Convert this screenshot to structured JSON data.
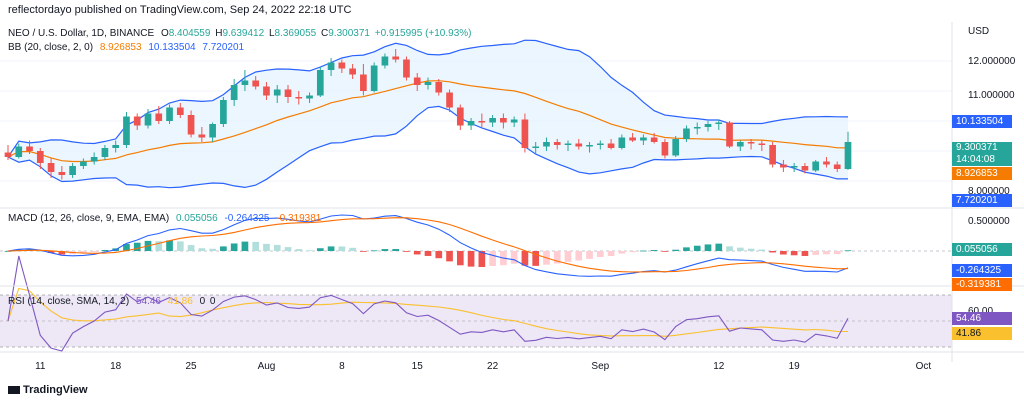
{
  "header": {
    "publisher_line": "reflectordayo published on TradingView.com, Sep 24, 2022 22:18 UTC"
  },
  "price_axis_title": "USD",
  "legend": {
    "symbol": "NEO / U.S. Dollar, 1D, BINANCE",
    "ohlc": {
      "o_label": "O",
      "o": "8.404559",
      "h_label": "H",
      "h": "9.639412",
      "l_label": "L",
      "l": "8.369055",
      "c_label": "C",
      "c": "9.300371",
      "change": "+0.915995 (+10.93%)"
    },
    "bb": {
      "label": "BB (20, close, 2, 0)",
      "basis": "8.926853",
      "upper": "10.133504",
      "lower": "7.720201"
    },
    "macd": {
      "label": "MACD (12, 26, close, 9, EMA, EMA)",
      "hist": "0.055056",
      "macd": "-0.264325",
      "signal": "-0.319381"
    },
    "rsi": {
      "label": "RSI (14, close, SMA, 14, 2)",
      "rsi": "54.46",
      "ma": "41.86",
      "extra1": "0",
      "extra2": "0"
    }
  },
  "badges": {
    "upper": "10.133504",
    "close": "9.300371",
    "countdown": "14:04:08",
    "basis": "8.926853",
    "lower": "7.720201",
    "macd_hist": "0.055056",
    "macd_line": "-0.264325",
    "macd_signal": "-0.319381",
    "rsi": "54.46",
    "rsi_ma": "41.86"
  },
  "colors": {
    "up": "#26a69a",
    "down": "#ef5350",
    "bb_band": "#2962ff",
    "bb_basis": "#f57c00",
    "bb_fill": "#e3f2fd",
    "macd_line": "#2962ff",
    "macd_signal": "#ff6d00",
    "rsi_line": "#7e57c2",
    "rsi_ma": "#fbc02d",
    "rsi_bg": "#ede7f6"
  },
  "footer": {
    "logo_text": "TradingView"
  },
  "chart_data": [
    {
      "type": "candlestick",
      "title": "NEO / U.S. Dollar, 1D, BINANCE",
      "ylabel": "USD",
      "y_ticks": [
        "12.000000",
        "11.000000",
        "8.000000"
      ],
      "x_ticks": [
        "11",
        "18",
        "25",
        "Aug",
        "8",
        "15",
        "22",
        "Sep",
        "12",
        "19",
        "Oct"
      ],
      "ylim": [
        7.3,
        12.9
      ],
      "x": [
        "Jul 8",
        "Jul 9",
        "Jul 10",
        "Jul 11",
        "Jul 12",
        "Jul 13",
        "Jul 14",
        "Jul 15",
        "Jul 16",
        "Jul 17",
        "Jul 18",
        "Jul 19",
        "Jul 20",
        "Jul 21",
        "Jul 22",
        "Jul 23",
        "Jul 24",
        "Jul 25",
        "Jul 26",
        "Jul 27",
        "Jul 28",
        "Jul 29",
        "Jul 30",
        "Jul 31",
        "Aug 1",
        "Aug 2",
        "Aug 3",
        "Aug 4",
        "Aug 5",
        "Aug 6",
        "Aug 7",
        "Aug 8",
        "Aug 9",
        "Aug 10",
        "Aug 11",
        "Aug 12",
        "Aug 13",
        "Aug 14",
        "Aug 15",
        "Aug 16",
        "Aug 17",
        "Aug 18",
        "Aug 19",
        "Aug 20",
        "Aug 21",
        "Aug 22",
        "Aug 23",
        "Aug 24",
        "Aug 25",
        "Aug 26",
        "Aug 27",
        "Aug 28",
        "Aug 29",
        "Aug 30",
        "Aug 31",
        "Sep 1",
        "Sep 2",
        "Sep 3",
        "Sep 4",
        "Sep 5",
        "Sep 6",
        "Sep 7",
        "Sep 8",
        "Sep 9",
        "Sep 10",
        "Sep 11",
        "Sep 12",
        "Sep 13",
        "Sep 14",
        "Sep 15",
        "Sep 16",
        "Sep 17",
        "Sep 18",
        "Sep 19",
        "Sep 20",
        "Sep 21",
        "Sep 22",
        "Sep 23",
        "Sep 24"
      ],
      "ohlc": [
        [
          8.95,
          9.2,
          8.7,
          8.8
        ],
        [
          8.8,
          9.25,
          8.75,
          9.15
        ],
        [
          9.15,
          9.35,
          8.9,
          9.0
        ],
        [
          9.0,
          9.1,
          8.4,
          8.6
        ],
        [
          8.6,
          8.75,
          8.1,
          8.3
        ],
        [
          8.3,
          8.5,
          8.05,
          8.2
        ],
        [
          8.2,
          8.6,
          8.1,
          8.5
        ],
        [
          8.5,
          8.75,
          8.4,
          8.65
        ],
        [
          8.65,
          8.95,
          8.55,
          8.8
        ],
        [
          8.8,
          9.2,
          8.7,
          9.1
        ],
        [
          9.1,
          9.35,
          8.95,
          9.2
        ],
        [
          9.2,
          10.3,
          9.1,
          10.15
        ],
        [
          10.15,
          10.25,
          9.7,
          9.85
        ],
        [
          9.85,
          10.4,
          9.75,
          10.25
        ],
        [
          10.25,
          10.5,
          9.9,
          10.0
        ],
        [
          10.0,
          10.55,
          9.9,
          10.45
        ],
        [
          10.45,
          10.6,
          10.1,
          10.2
        ],
        [
          10.2,
          10.35,
          9.45,
          9.55
        ],
        [
          9.55,
          9.8,
          9.3,
          9.45
        ],
        [
          9.45,
          9.95,
          9.3,
          9.9
        ],
        [
          9.9,
          10.8,
          9.8,
          10.7
        ],
        [
          10.7,
          11.4,
          10.5,
          11.2
        ],
        [
          11.2,
          11.7,
          11.0,
          11.35
        ],
        [
          11.35,
          11.5,
          11.05,
          11.15
        ],
        [
          11.15,
          11.3,
          10.7,
          10.85
        ],
        [
          10.85,
          11.2,
          10.6,
          11.05
        ],
        [
          11.05,
          11.2,
          10.6,
          10.8
        ],
        [
          10.8,
          11.0,
          10.55,
          10.75
        ],
        [
          10.75,
          10.95,
          10.6,
          10.85
        ],
        [
          10.85,
          11.8,
          10.8,
          11.7
        ],
        [
          11.7,
          12.1,
          11.5,
          11.95
        ],
        [
          11.95,
          12.05,
          11.6,
          11.75
        ],
        [
          11.75,
          11.9,
          11.4,
          11.55
        ],
        [
          11.55,
          11.9,
          10.85,
          11.0
        ],
        [
          11.0,
          11.95,
          10.95,
          11.85
        ],
        [
          11.85,
          12.25,
          11.75,
          12.15
        ],
        [
          12.15,
          12.4,
          11.95,
          12.05
        ],
        [
          12.05,
          12.15,
          11.35,
          11.45
        ],
        [
          11.45,
          11.6,
          11.0,
          11.2
        ],
        [
          11.2,
          11.45,
          11.05,
          11.3
        ],
        [
          11.3,
          11.4,
          10.85,
          10.95
        ],
        [
          10.95,
          11.05,
          10.3,
          10.45
        ],
        [
          10.45,
          10.55,
          9.7,
          9.85
        ],
        [
          9.85,
          10.1,
          9.7,
          10.0
        ],
        [
          10.0,
          10.25,
          9.8,
          9.95
        ],
        [
          9.95,
          10.2,
          9.8,
          10.1
        ],
        [
          10.1,
          10.25,
          9.75,
          9.95
        ],
        [
          9.95,
          10.15,
          9.8,
          10.05
        ],
        [
          10.05,
          10.25,
          8.95,
          9.1
        ],
        [
          9.1,
          9.3,
          8.9,
          9.15
        ],
        [
          9.15,
          9.45,
          9.0,
          9.3
        ],
        [
          9.3,
          9.4,
          9.05,
          9.2
        ],
        [
          9.2,
          9.35,
          9.0,
          9.25
        ],
        [
          9.25,
          9.4,
          9.05,
          9.15
        ],
        [
          9.15,
          9.3,
          8.95,
          9.2
        ],
        [
          9.2,
          9.35,
          9.05,
          9.25
        ],
        [
          9.25,
          9.4,
          9.05,
          9.1
        ],
        [
          9.1,
          9.55,
          9.05,
          9.45
        ],
        [
          9.45,
          9.6,
          9.3,
          9.35
        ],
        [
          9.35,
          9.55,
          9.2,
          9.45
        ],
        [
          9.45,
          9.6,
          9.25,
          9.3
        ],
        [
          9.3,
          9.4,
          8.75,
          8.85
        ],
        [
          8.85,
          9.5,
          8.8,
          9.4
        ],
        [
          9.4,
          9.85,
          9.3,
          9.75
        ],
        [
          9.75,
          9.95,
          9.55,
          9.8
        ],
        [
          9.8,
          10.0,
          9.65,
          9.9
        ],
        [
          9.9,
          10.05,
          9.7,
          9.95
        ],
        [
          9.95,
          10.0,
          9.1,
          9.15
        ],
        [
          9.15,
          9.35,
          9.0,
          9.3
        ],
        [
          9.3,
          9.4,
          9.05,
          9.25
        ],
        [
          9.25,
          9.35,
          9.0,
          9.2
        ],
        [
          9.2,
          9.3,
          8.45,
          8.55
        ],
        [
          8.55,
          8.7,
          8.3,
          8.45
        ],
        [
          8.45,
          8.6,
          8.3,
          8.5
        ],
        [
          8.5,
          8.6,
          8.25,
          8.35
        ],
        [
          8.35,
          8.7,
          8.3,
          8.65
        ],
        [
          8.65,
          8.8,
          8.45,
          8.55
        ],
        [
          8.55,
          8.65,
          8.3,
          8.4
        ],
        [
          8.4,
          9.64,
          8.37,
          9.3
        ]
      ]
    },
    {
      "type": "line",
      "title": "MACD (12, 26, close, 9, EMA, EMA)",
      "y_ticks": [
        "0.500000"
      ],
      "series": [
        {
          "name": "MACD",
          "last": -0.264325
        },
        {
          "name": "Signal",
          "last": -0.319381
        },
        {
          "name": "Histogram",
          "last": 0.055056
        }
      ]
    },
    {
      "type": "line",
      "title": "RSI (14, close, SMA, 14, 2)",
      "y_ticks": [
        "60.00"
      ],
      "ylim": [
        0,
        100
      ],
      "levels": [
        70,
        30
      ],
      "series": [
        {
          "name": "RSI",
          "last": 54.46
        },
        {
          "name": "RSI-based MA",
          "last": 41.86
        }
      ]
    }
  ]
}
